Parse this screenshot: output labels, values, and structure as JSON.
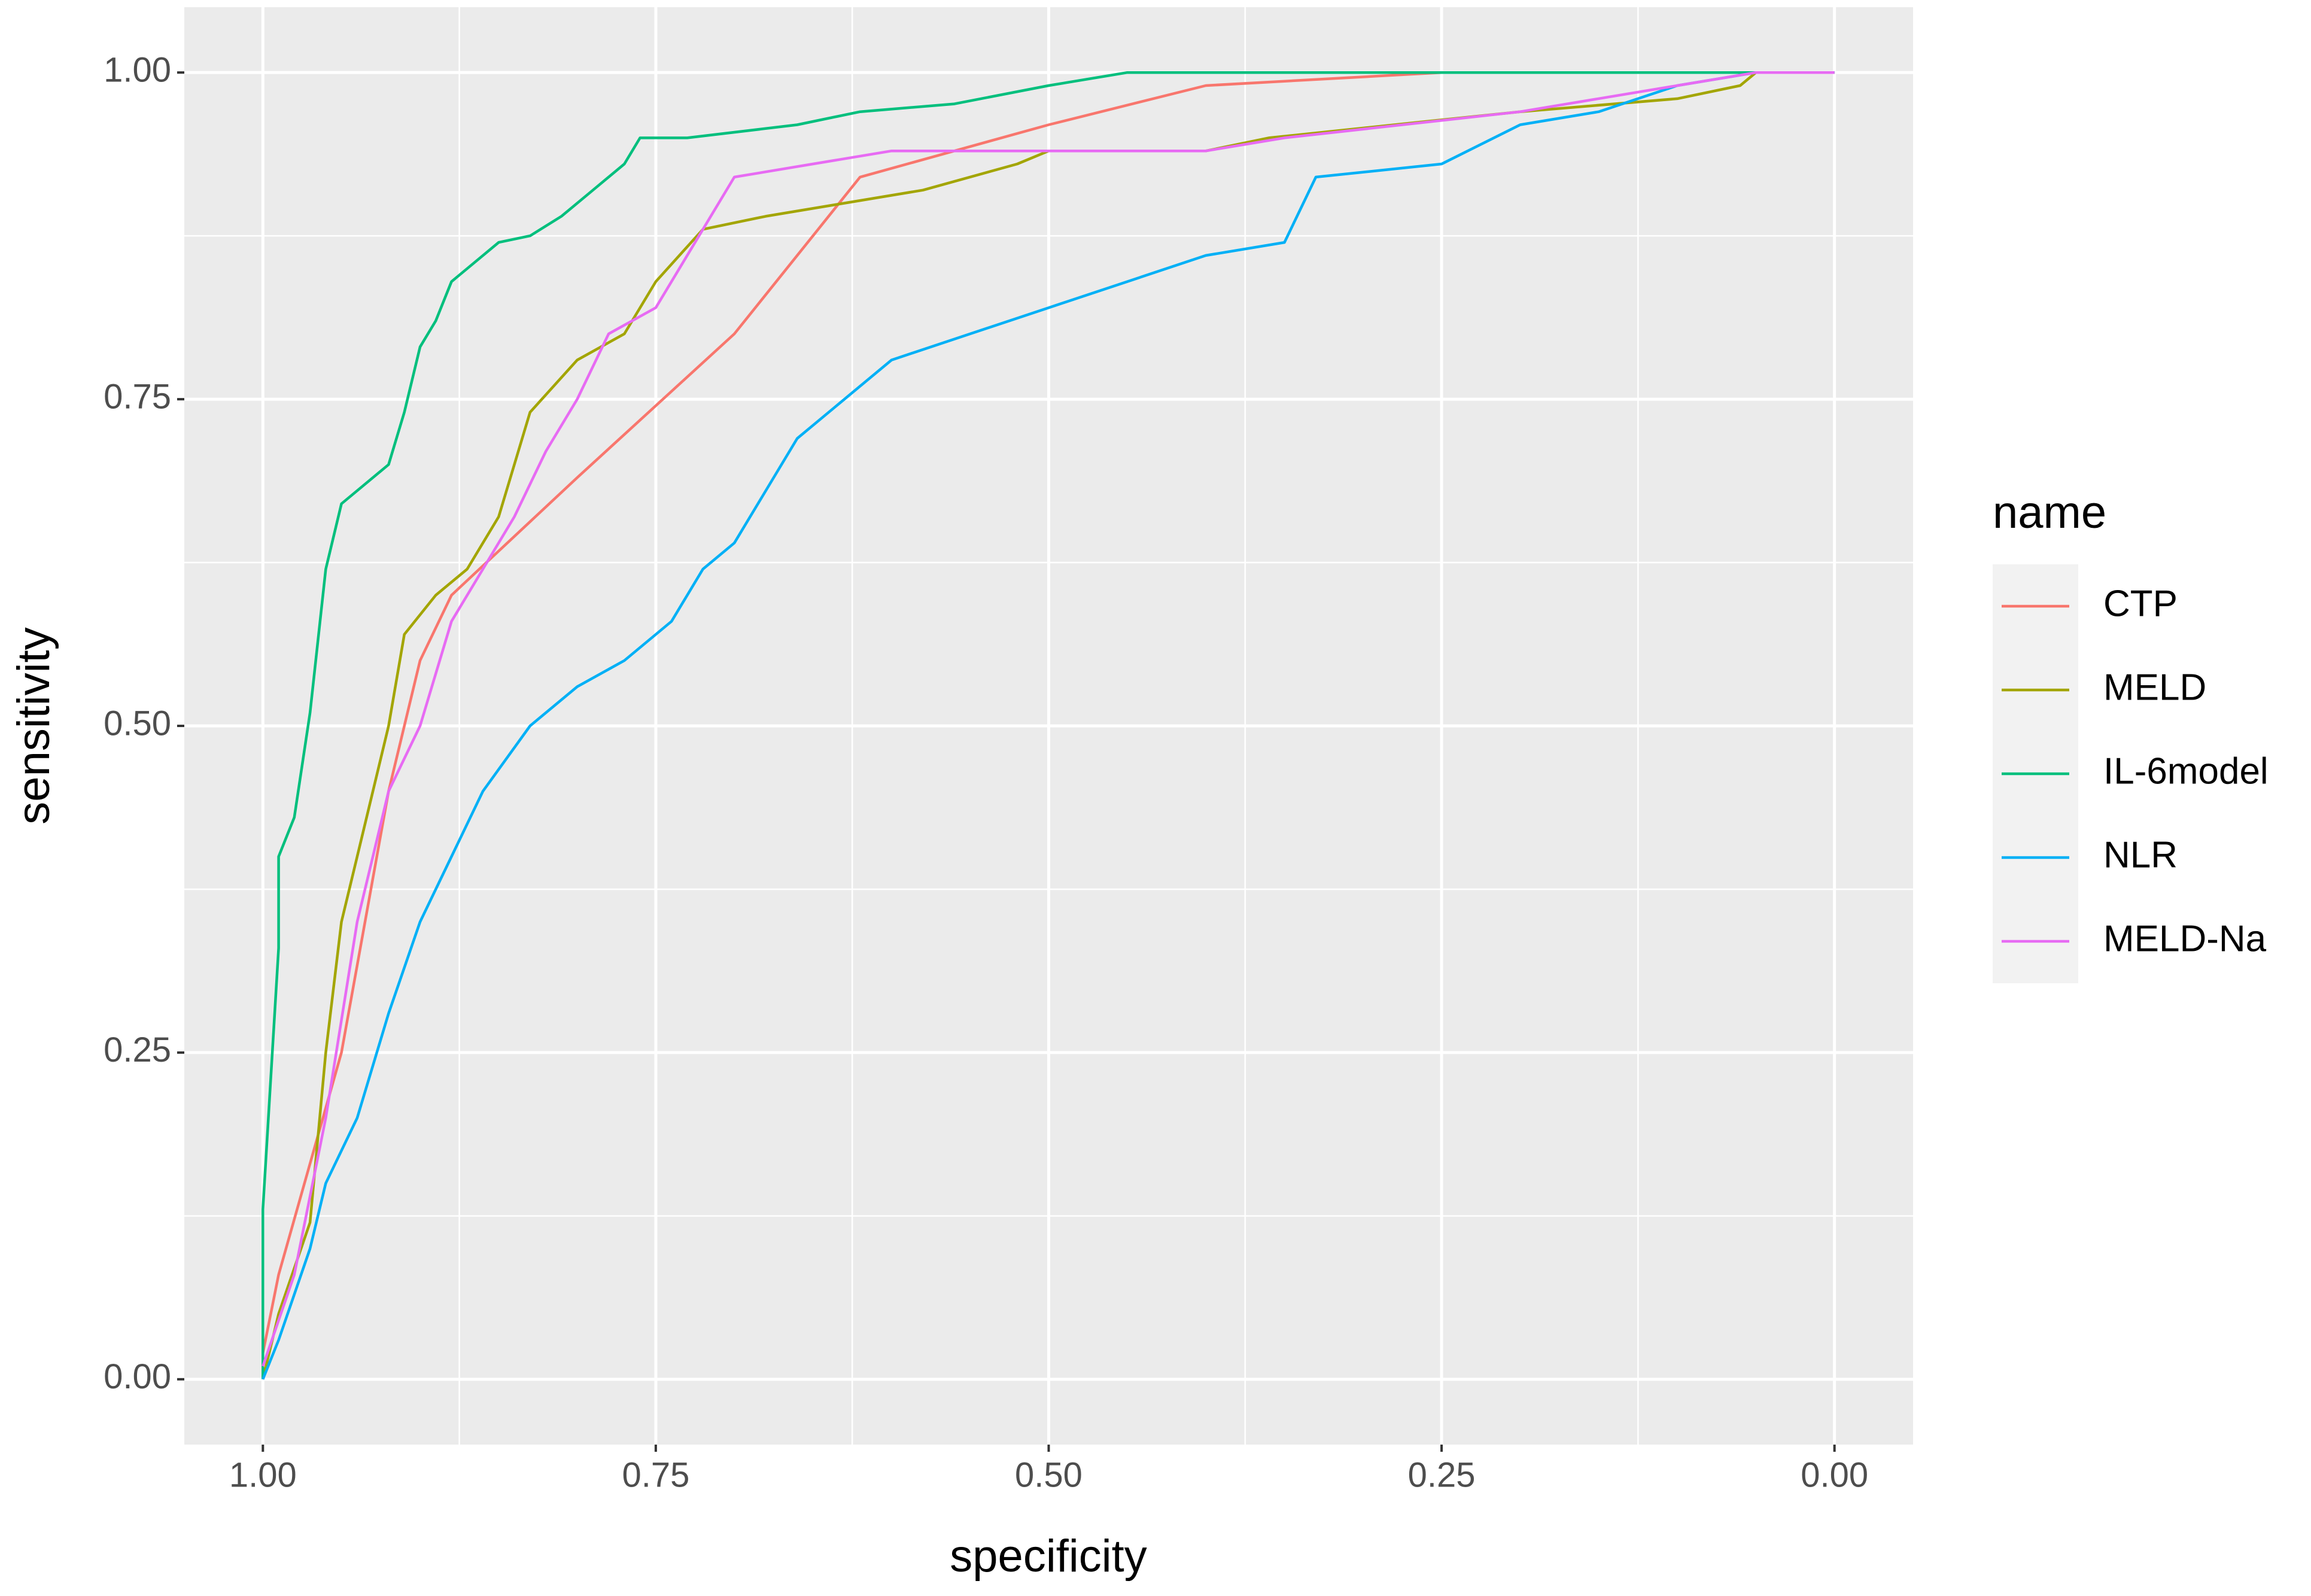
{
  "chart_data": {
    "type": "line",
    "x_label": "specificity",
    "y_label": "sensitivity",
    "legend_title": "name",
    "legend_position": "right",
    "grid": true,
    "xlim": [
      1.05,
      -0.05
    ],
    "ylim": [
      -0.05,
      1.05
    ],
    "xticks": [
      {
        "value": 1,
        "label": "1.00"
      },
      {
        "value": 0.75,
        "label": "0.75"
      },
      {
        "value": 0.5,
        "label": "0.50"
      },
      {
        "value": 0.25,
        "label": "0.25"
      },
      {
        "value": 0,
        "label": "0.00"
      }
    ],
    "yticks": [
      {
        "value": 0,
        "label": "0.00"
      },
      {
        "value": 0.25,
        "label": "0.25"
      },
      {
        "value": 0.5,
        "label": "0.50"
      },
      {
        "value": 0.75,
        "label": "0.75"
      },
      {
        "value": 1,
        "label": "1.00"
      }
    ],
    "minor_xticks": [
      0.875,
      0.625,
      0.375,
      0.125
    ],
    "minor_yticks": [
      0.125,
      0.375,
      0.625,
      0.875
    ],
    "series": [
      {
        "name": "CTP",
        "color": "#F8766D",
        "x": [
          1,
          0.99,
          0.95,
          0.92,
          0.9,
          0.88,
          0.8,
          0.7,
          0.62,
          0.5,
          0.4,
          0.25,
          0
        ],
        "values": [
          0.02,
          0.08,
          0.25,
          0.45,
          0.55,
          0.6,
          0.69,
          0.8,
          0.92,
          0.96,
          0.99,
          1,
          1
        ]
      },
      {
        "name": "MELD",
        "color": "#A3A500",
        "x": [
          1,
          0.99,
          0.97,
          0.96,
          0.95,
          0.94,
          0.92,
          0.91,
          0.89,
          0.87,
          0.85,
          0.83,
          0.8,
          0.77,
          0.75,
          0.72,
          0.68,
          0.63,
          0.58,
          0.52,
          0.5,
          0.4,
          0.36,
          0.28,
          0.2,
          0.1,
          0.06,
          0.05,
          0
        ],
        "values": [
          0,
          0.05,
          0.12,
          0.25,
          0.35,
          0.4,
          0.5,
          0.57,
          0.6,
          0.62,
          0.66,
          0.74,
          0.78,
          0.8,
          0.84,
          0.88,
          0.89,
          0.9,
          0.91,
          0.93,
          0.94,
          0.94,
          0.95,
          0.96,
          0.97,
          0.98,
          0.99,
          1,
          1
        ]
      },
      {
        "name": "IL-6model",
        "color": "#00BF7D",
        "x": [
          1,
          1,
          0.99,
          0.99,
          0.98,
          0.97,
          0.96,
          0.95,
          0.92,
          0.91,
          0.9,
          0.89,
          0.88,
          0.85,
          0.83,
          0.81,
          0.79,
          0.77,
          0.76,
          0.73,
          0.66,
          0.62,
          0.56,
          0.5,
          0.45,
          0.27,
          0
        ],
        "values": [
          0,
          0.13,
          0.33,
          0.4,
          0.43,
          0.51,
          0.62,
          0.67,
          0.7,
          0.74,
          0.79,
          0.81,
          0.84,
          0.87,
          0.875,
          0.89,
          0.91,
          0.93,
          0.95,
          0.95,
          0.96,
          0.97,
          0.976,
          0.99,
          1,
          1,
          1
        ]
      },
      {
        "name": "NLR",
        "color": "#00B0F6",
        "x": [
          1,
          0.99,
          0.97,
          0.96,
          0.94,
          0.92,
          0.9,
          0.88,
          0.86,
          0.83,
          0.8,
          0.77,
          0.74,
          0.72,
          0.7,
          0.68,
          0.66,
          0.63,
          0.6,
          0.55,
          0.5,
          0.45,
          0.4,
          0.35,
          0.33,
          0.25,
          0.2,
          0.15,
          0.1,
          0.05,
          0
        ],
        "values": [
          0,
          0.03,
          0.1,
          0.15,
          0.2,
          0.28,
          0.35,
          0.4,
          0.45,
          0.5,
          0.53,
          0.55,
          0.58,
          0.62,
          0.64,
          0.68,
          0.72,
          0.75,
          0.78,
          0.8,
          0.82,
          0.84,
          0.86,
          0.87,
          0.92,
          0.93,
          0.96,
          0.97,
          0.99,
          1,
          1
        ]
      },
      {
        "name": "MELD-Na",
        "color": "#E76BF3",
        "x": [
          1,
          0.98,
          0.96,
          0.94,
          0.92,
          0.9,
          0.88,
          0.86,
          0.84,
          0.82,
          0.8,
          0.78,
          0.75,
          0.72,
          0.7,
          0.65,
          0.6,
          0.5,
          0.4,
          0.35,
          0.2,
          0.1,
          0.05,
          0
        ],
        "values": [
          0.01,
          0.08,
          0.2,
          0.35,
          0.45,
          0.5,
          0.58,
          0.62,
          0.66,
          0.71,
          0.75,
          0.8,
          0.82,
          0.88,
          0.92,
          0.93,
          0.94,
          0.94,
          0.94,
          0.95,
          0.97,
          0.99,
          1,
          1
        ]
      }
    ]
  }
}
